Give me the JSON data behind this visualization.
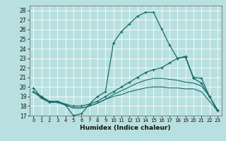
{
  "xlabel": "Humidex (Indice chaleur)",
  "bg_color": "#b8e0e0",
  "grid_color": "#ffffff",
  "line_color": "#1a6b6b",
  "xlim": [
    -0.5,
    23.5
  ],
  "ylim": [
    17,
    28.5
  ],
  "xticks": [
    0,
    1,
    2,
    3,
    4,
    5,
    6,
    7,
    8,
    9,
    10,
    11,
    12,
    13,
    14,
    15,
    16,
    17,
    18,
    19,
    20,
    21,
    22,
    23
  ],
  "yticks": [
    17,
    18,
    19,
    20,
    21,
    22,
    23,
    24,
    25,
    26,
    27,
    28
  ],
  "line1_x": [
    0,
    1,
    2,
    3,
    4,
    5,
    6,
    7,
    8,
    9,
    10,
    11,
    12,
    13,
    14,
    15,
    16,
    17,
    18,
    19,
    20,
    21,
    22,
    23
  ],
  "line1_y": [
    19.9,
    18.9,
    18.4,
    18.5,
    18.1,
    17.0,
    17.2,
    18.2,
    19.0,
    19.5,
    24.6,
    25.8,
    26.6,
    27.4,
    27.8,
    27.8,
    26.1,
    24.4,
    23.0,
    23.1,
    20.9,
    20.4,
    19.0,
    17.6
  ],
  "line2_x": [
    0,
    1,
    2,
    3,
    4,
    5,
    6,
    7,
    8,
    9,
    10,
    11,
    12,
    13,
    14,
    15,
    16,
    17,
    18,
    19,
    20,
    21,
    22,
    23
  ],
  "line2_y": [
    19.5,
    19.0,
    18.5,
    18.5,
    18.2,
    18.0,
    18.0,
    18.2,
    18.5,
    19.0,
    19.5,
    20.0,
    20.5,
    21.0,
    21.5,
    21.8,
    22.0,
    22.5,
    23.0,
    23.2,
    21.0,
    20.9,
    19.0,
    17.5
  ],
  "line3_x": [
    0,
    1,
    2,
    3,
    4,
    5,
    6,
    7,
    8,
    9,
    10,
    11,
    12,
    13,
    14,
    15,
    16,
    17,
    18,
    19,
    20,
    21,
    22,
    23
  ],
  "line3_y": [
    19.5,
    19.0,
    18.4,
    18.4,
    18.1,
    17.8,
    17.8,
    18.0,
    18.3,
    18.7,
    19.2,
    19.6,
    20.0,
    20.4,
    20.7,
    20.9,
    20.9,
    20.8,
    20.7,
    20.5,
    20.4,
    20.1,
    19.0,
    17.6
  ],
  "line4_x": [
    0,
    1,
    2,
    3,
    4,
    5,
    6,
    7,
    8,
    9,
    10,
    11,
    12,
    13,
    14,
    15,
    16,
    17,
    18,
    19,
    20,
    21,
    22,
    23
  ],
  "line4_y": [
    19.5,
    18.8,
    18.4,
    18.4,
    18.1,
    17.8,
    17.8,
    18.0,
    18.3,
    18.7,
    19.0,
    19.2,
    19.5,
    19.7,
    19.9,
    20.0,
    20.0,
    19.9,
    19.9,
    19.8,
    19.8,
    19.5,
    18.5,
    17.5
  ]
}
